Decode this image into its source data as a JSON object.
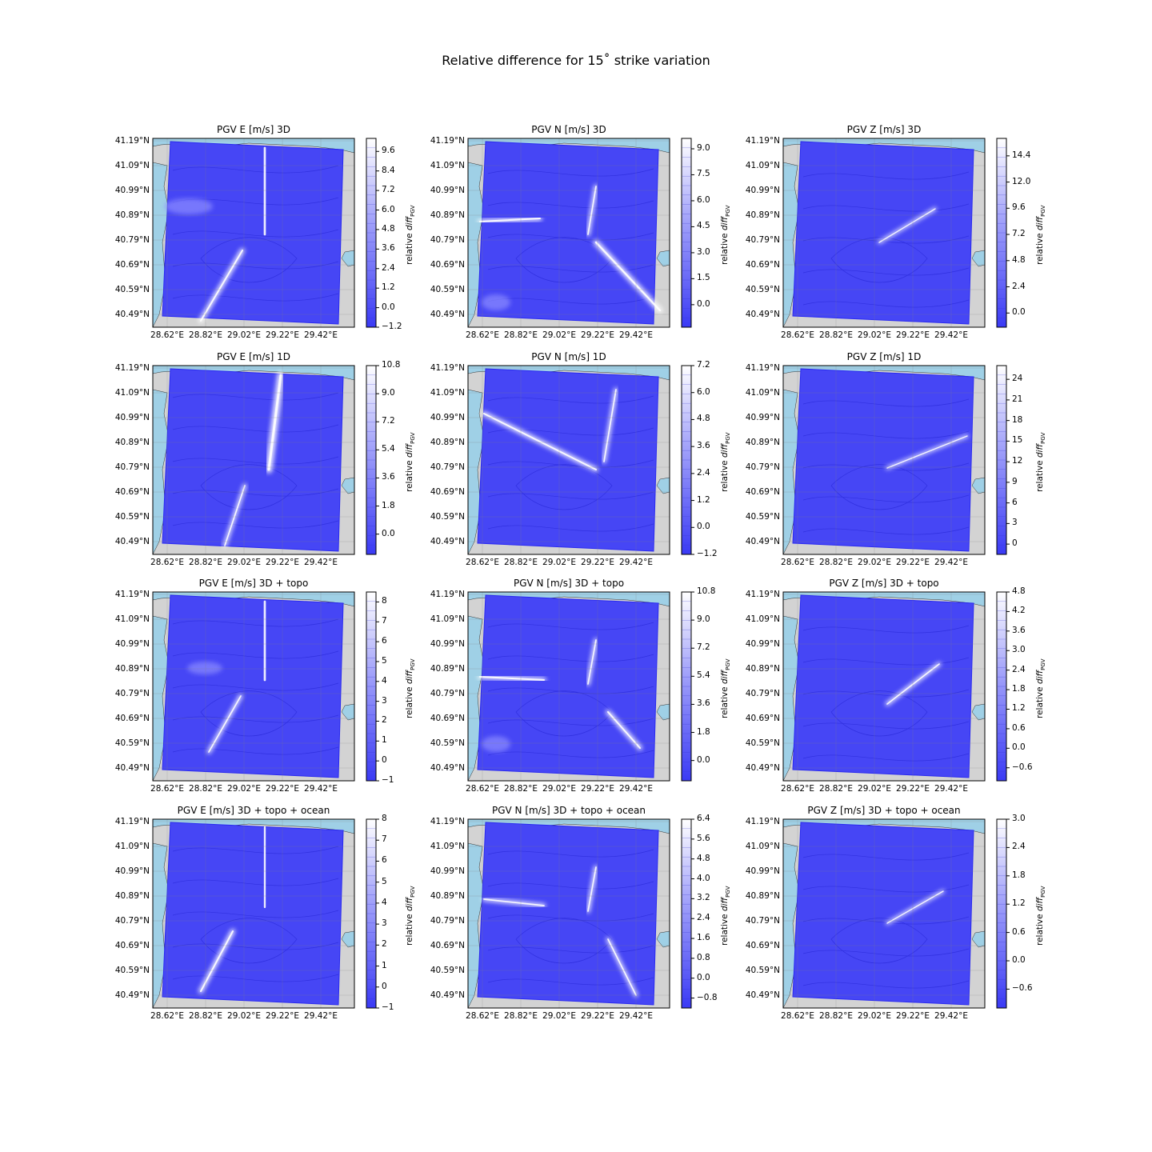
{
  "figure": {
    "title": "Relative difference for 15˚ strike variation",
    "lat_ticks": [
      "41.19°N",
      "41.09°N",
      "40.99°N",
      "40.89°N",
      "40.79°N",
      "40.69°N",
      "40.59°N",
      "40.49°N"
    ],
    "lon_ticks": [
      "28.62°E",
      "28.82°E",
      "29.02°E",
      "29.22°E",
      "29.42°E"
    ],
    "colorbar_label_main": "relative ",
    "colorbar_label_sub": "diff",
    "colorbar_label_subscript": "PGV",
    "colors": {
      "land": "#d3d3d3",
      "ocean": "#9fd0e6",
      "field": "#4646f5",
      "field_dark": "#2a2af0",
      "highlight": "#ffffff"
    }
  },
  "chart_data": [
    {
      "type": "heatmap",
      "title": "PGV E [m/s] 3D",
      "colorbar_ticks": [
        "9.6",
        "8.4",
        "7.2",
        "6.0",
        "4.8",
        "3.6",
        "2.4",
        "1.2",
        "0.0",
        "−1.2"
      ],
      "colorbar_range": [
        -1.2,
        10.4
      ]
    },
    {
      "type": "heatmap",
      "title": "PGV N [m/s] 3D",
      "colorbar_ticks": [
        "9.0",
        "7.5",
        "6.0",
        "4.5",
        "3.0",
        "1.5",
        "0.0"
      ],
      "colorbar_range": [
        -1.3,
        9.6
      ]
    },
    {
      "type": "heatmap",
      "title": "PGV Z [m/s] 3D",
      "colorbar_ticks": [
        "14.4",
        "12.0",
        "9.6",
        "7.2",
        "4.8",
        "2.4",
        "0.0"
      ],
      "colorbar_range": [
        -1.3,
        16.0
      ]
    },
    {
      "type": "heatmap",
      "title": "PGV E [m/s] 1D",
      "colorbar_ticks": [
        "10.8",
        "9.0",
        "7.2",
        "5.4",
        "3.6",
        "1.8",
        "0.0"
      ],
      "colorbar_range": [
        -1.3,
        10.8
      ]
    },
    {
      "type": "heatmap",
      "title": "PGV N [m/s] 1D",
      "colorbar_ticks": [
        "7.2",
        "6.0",
        "4.8",
        "3.6",
        "2.4",
        "1.2",
        "0.0",
        "−1.2"
      ],
      "colorbar_range": [
        -1.2,
        7.2
      ]
    },
    {
      "type": "heatmap",
      "title": "PGV Z [m/s] 1D",
      "colorbar_ticks": [
        "24",
        "21",
        "18",
        "15",
        "12",
        "9",
        "6",
        "3",
        "0"
      ],
      "colorbar_range": [
        -1.5,
        26.0
      ]
    },
    {
      "type": "heatmap",
      "title": "PGV E [m/s] 3D + topo",
      "colorbar_ticks": [
        "8",
        "7",
        "6",
        "5",
        "4",
        "3",
        "2",
        "1",
        "0",
        "−1"
      ],
      "colorbar_range": [
        -1,
        8.5
      ]
    },
    {
      "type": "heatmap",
      "title": "PGV N [m/s] 3D + topo",
      "colorbar_ticks": [
        "10.8",
        "9.0",
        "7.2",
        "5.4",
        "3.6",
        "1.8",
        "0.0"
      ],
      "colorbar_range": [
        -1.3,
        10.8
      ]
    },
    {
      "type": "heatmap",
      "title": "PGV Z [m/s] 3D + topo",
      "colorbar_ticks": [
        "4.8",
        "4.2",
        "3.6",
        "3.0",
        "2.4",
        "1.8",
        "1.2",
        "0.6",
        "0.0",
        "−0.6"
      ],
      "colorbar_range": [
        -1.0,
        4.8
      ]
    },
    {
      "type": "heatmap",
      "title": "PGV E [m/s] 3D + topo + ocean",
      "colorbar_ticks": [
        "8",
        "7",
        "6",
        "5",
        "4",
        "3",
        "2",
        "1",
        "0",
        "−1"
      ],
      "colorbar_range": [
        -1,
        8
      ]
    },
    {
      "type": "heatmap",
      "title": "PGV N [m/s] 3D + topo + ocean",
      "colorbar_ticks": [
        "6.4",
        "5.6",
        "4.8",
        "4.0",
        "3.2",
        "2.4",
        "1.6",
        "0.8",
        "0.0",
        "−0.8"
      ],
      "colorbar_range": [
        -1.2,
        6.4
      ]
    },
    {
      "type": "heatmap",
      "title": "PGV Z [m/s] 3D + topo + ocean",
      "colorbar_ticks": [
        "3.0",
        "2.4",
        "1.8",
        "1.2",
        "0.6",
        "0.0",
        "−0.6"
      ],
      "colorbar_range": [
        -1.0,
        3.0
      ]
    }
  ]
}
